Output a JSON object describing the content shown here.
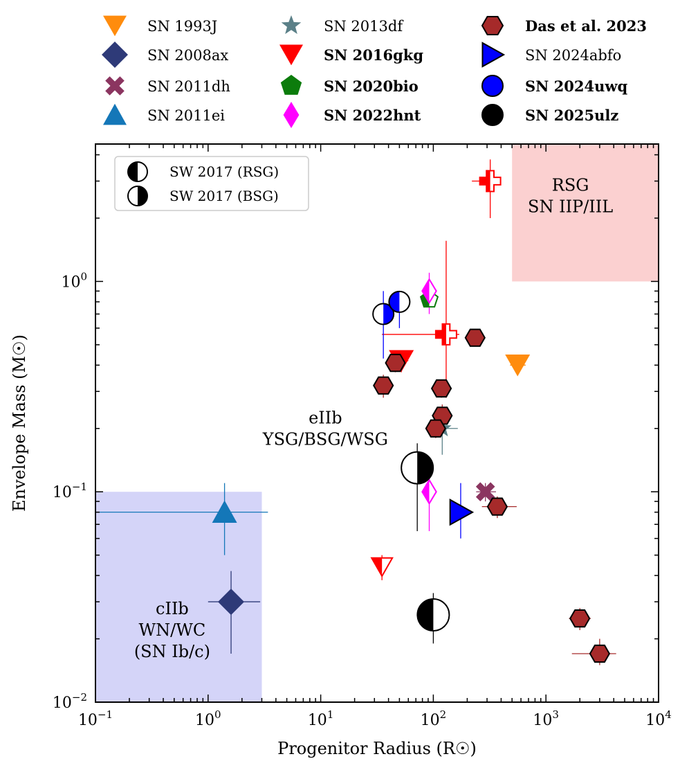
{
  "chart_data": {
    "type": "scatter",
    "xscale": "log",
    "yscale": "log",
    "xlim": [
      0.1,
      10000
    ],
    "ylim": [
      0.01,
      4.5
    ],
    "xlabel": "Progenitor Radius (R☉)",
    "ylabel": "Envelope Mass (M☉)",
    "x_tick_labels": [
      {
        "value": 0.1,
        "base": "10",
        "exp": "−1"
      },
      {
        "value": 1,
        "base": "10",
        "exp": "0"
      },
      {
        "value": 10,
        "base": "10",
        "exp": "1"
      },
      {
        "value": 100,
        "base": "10",
        "exp": "2"
      },
      {
        "value": 1000,
        "base": "10",
        "exp": "3"
      },
      {
        "value": 10000,
        "base": "10",
        "exp": "4"
      }
    ],
    "y_tick_labels": [
      {
        "value": 0.01,
        "base": "10",
        "exp": "−2"
      },
      {
        "value": 0.1,
        "base": "10",
        "exp": "−1"
      },
      {
        "value": 1,
        "base": "10",
        "exp": "0"
      }
    ],
    "regions": [
      {
        "name": "rsg-region",
        "x": [
          500,
          10000
        ],
        "y": [
          1.0,
          4.5
        ],
        "color": "#fbd0d0",
        "label_lines": [
          "RSG",
          "SN IIP/IIL"
        ],
        "label_x": 1650,
        "label_y": 2.55
      },
      {
        "name": "cIIb-region",
        "x": [
          0.1,
          3.0
        ],
        "y": [
          0.01,
          0.1
        ],
        "color": "#d4d4f8",
        "label_lines": [
          "cIIb",
          "WN/WC",
          "(SN Ib/c)"
        ],
        "label_x": 0.48,
        "label_y": 0.022
      },
      {
        "name": "eIIb-label",
        "color": "none",
        "label_lines": [
          "eIIb",
          "YSG/BSG/WSG"
        ],
        "label_x": 11,
        "label_y": 0.2
      }
    ],
    "legend": [
      {
        "name": "SN 1993J",
        "marker": "tri-down",
        "color": "#ff8c0d",
        "bold": false
      },
      {
        "name": "SN 2008ax",
        "marker": "diamond",
        "color": "#2e3a78",
        "bold": false
      },
      {
        "name": "SN 2011dh",
        "marker": "x",
        "color": "#8b3560",
        "bold": false
      },
      {
        "name": "SN 2011ei",
        "marker": "tri-up",
        "color": "#1477b8",
        "bold": false
      },
      {
        "name": "SN 2013df",
        "marker": "star",
        "color": "#5b8088",
        "bold": false
      },
      {
        "name": "SN 2016gkg",
        "marker": "tri-down",
        "color": "#ff0000",
        "bold": true
      },
      {
        "name": "SN 2020bio",
        "marker": "pentagon",
        "color": "#0c7c0c",
        "bold": true
      },
      {
        "name": "SN 2022hnt",
        "marker": "thin-diamond",
        "color": "#ff00ff",
        "bold": true
      },
      {
        "name": "Das et al. 2023",
        "marker": "hexagon",
        "color": "#a62a2a",
        "bold": true
      },
      {
        "name": "SN 2024abfo",
        "marker": "tri-right",
        "color": "#0000ff",
        "bold": false
      },
      {
        "name": "SN 2024uwq",
        "marker": "circle",
        "color": "#0000ff",
        "bold": true
      },
      {
        "name": "SN 2025ulz",
        "marker": "circle",
        "color": "#000000",
        "bold": true
      }
    ],
    "inset_legend": [
      {
        "label": "SW 2017 (RSG)",
        "style": "left-filled"
      },
      {
        "label": "SW 2017 (BSG)",
        "style": "right-filled"
      }
    ],
    "points": [
      {
        "series": "SN 1993J",
        "x": 560,
        "y": 0.4,
        "marker": "tri-down",
        "fill": "#ff8c0d",
        "xerr": [
          80,
          100
        ],
        "yerr": [
          0.03,
          0.03
        ],
        "size": 18
      },
      {
        "series": "SN 2008ax",
        "x": 1.6,
        "y": 0.03,
        "marker": "diamond",
        "fill": "#2e3a78",
        "xerr": [
          0.6,
          1.3
        ],
        "yerr": [
          0.013,
          0.012
        ],
        "size": 19
      },
      {
        "series": "SN 2011dh",
        "x": 290,
        "y": 0.1,
        "marker": "x",
        "fill": "#8b3560",
        "xerr": [
          50,
          70
        ],
        "yerr": [
          0.01,
          0.01
        ],
        "size": 15
      },
      {
        "series": "SN 2011ei",
        "x": 1.4,
        "y": 0.08,
        "marker": "tri-up",
        "fill": "#1477b8",
        "xerr": [
          1.3,
          2.0
        ],
        "yerr": [
          0.03,
          0.03
        ],
        "size": 18
      },
      {
        "series": "SN 2013df",
        "x": 120,
        "y": 0.2,
        "marker": "star",
        "fill": "#5b8088",
        "xerr": [
          30,
          45
        ],
        "yerr": [
          0.05,
          0.05
        ],
        "size": 14
      },
      {
        "series": "SN 2016gkg",
        "x": 52,
        "y": 0.42,
        "marker": "tri-down",
        "fill": "#ff0000",
        "xerr": [
          8,
          8
        ],
        "yerr": [
          0.05,
          0.05
        ],
        "size": 18
      },
      {
        "series": "SN 2016gkg",
        "x": 35,
        "y": 0.044,
        "marker": "tri-down",
        "fill": "#ff0000",
        "hollow_half": "right",
        "xerr": [
          0,
          0
        ],
        "yerr": [
          0.006,
          0.006
        ],
        "size": 15
      },
      {
        "series": "SN 2016gkg",
        "x": 320,
        "y": 3.0,
        "marker": "plus",
        "fill": "#ff0000",
        "hollow_half": "right",
        "xerr": [
          100,
          80
        ],
        "yerr": [
          1.0,
          0.8
        ],
        "size": 15
      },
      {
        "series": "SN 2016gkg",
        "x": 130,
        "y": 0.56,
        "marker": "plus",
        "fill": "#ff0000",
        "hollow_half": "right",
        "xerr": [
          95,
          40
        ],
        "yerr": [
          0.28,
          1.0
        ],
        "size": 15
      },
      {
        "series": "SN 2020bio",
        "x": 92,
        "y": 0.82,
        "marker": "pentagon",
        "fill": "#0c7c0c",
        "hollow_half": "right",
        "xerr": [
          0,
          0
        ],
        "yerr": [
          0.0,
          0.0
        ],
        "size": 13
      },
      {
        "series": "SN 2022hnt",
        "x": 92,
        "y": 0.9,
        "marker": "thin-diamond",
        "fill": "#ff00ff",
        "hollow_half": "right",
        "xerr": [
          0,
          0
        ],
        "yerr": [
          0.2,
          0.2
        ],
        "size": 17
      },
      {
        "series": "SN 2022hnt",
        "x": 92,
        "y": 0.1,
        "marker": "thin-diamond",
        "fill": "#ff00ff",
        "hollow_half": "right",
        "xerr": [
          0,
          0
        ],
        "yerr": [
          0.035,
          0.03
        ],
        "size": 17
      },
      {
        "series": "Das et al. 2023",
        "x": 36,
        "y": 0.32,
        "marker": "hexagon",
        "fill": "#a62a2a",
        "xerr": [
          6,
          6
        ],
        "yerr": [
          0.04,
          0.04
        ],
        "size": 14
      },
      {
        "series": "Das et al. 2023",
        "x": 46,
        "y": 0.41,
        "marker": "hexagon",
        "fill": "#a62a2a",
        "xerr": [
          6,
          6
        ],
        "yerr": [
          0.04,
          0.04
        ],
        "size": 14
      },
      {
        "series": "Das et al. 2023",
        "x": 118,
        "y": 0.31,
        "marker": "hexagon",
        "fill": "#a62a2a",
        "xerr": [
          10,
          10
        ],
        "yerr": [
          0.03,
          0.03
        ],
        "size": 14
      },
      {
        "series": "Das et al. 2023",
        "x": 120,
        "y": 0.23,
        "marker": "hexagon",
        "fill": "#a62a2a",
        "xerr": [
          10,
          10
        ],
        "yerr": [
          0.03,
          0.03
        ],
        "size": 14
      },
      {
        "series": "Das et al. 2023",
        "x": 105,
        "y": 0.2,
        "marker": "hexagon",
        "fill": "#a62a2a",
        "xerr": [
          10,
          10
        ],
        "yerr": [
          0.02,
          0.02
        ],
        "size": 14
      },
      {
        "series": "Das et al. 2023",
        "x": 235,
        "y": 0.54,
        "marker": "hexagon",
        "fill": "#a62a2a",
        "xerr": [
          20,
          20
        ],
        "yerr": [
          0.04,
          0.04
        ],
        "size": 14
      },
      {
        "series": "Das et al. 2023",
        "x": 370,
        "y": 0.085,
        "marker": "hexagon",
        "fill": "#a62a2a",
        "xerr": [
          100,
          180
        ],
        "yerr": [
          0.01,
          0.01
        ],
        "size": 14
      },
      {
        "series": "Das et al. 2023",
        "x": 2000,
        "y": 0.025,
        "marker": "hexagon",
        "fill": "#a62a2a",
        "xerr": [
          400,
          500
        ],
        "yerr": [
          0.003,
          0.003
        ],
        "size": 14
      },
      {
        "series": "Das et al. 2023",
        "x": 3000,
        "y": 0.017,
        "marker": "hexagon",
        "fill": "#a62a2a",
        "xerr": [
          1300,
          1200
        ],
        "yerr": [
          0.002,
          0.003
        ],
        "size": 14
      },
      {
        "series": "SN 2024abfo",
        "x": 175,
        "y": 0.08,
        "marker": "tri-right",
        "fill": "#0000ff",
        "xerr": [
          0,
          0
        ],
        "yerr": [
          0.02,
          0.03
        ],
        "size": 18
      },
      {
        "series": "SN 2024uwq",
        "x": 36,
        "y": 0.7,
        "marker": "circle",
        "fill": "#0000ff",
        "half": "right",
        "xerr": [
          0,
          0
        ],
        "yerr": [
          0.27,
          0.2
        ],
        "size": 15
      },
      {
        "series": "SN 2024uwq",
        "x": 50,
        "y": 0.8,
        "marker": "circle",
        "fill": "#0000ff",
        "half": "left",
        "xerr": [
          0,
          0
        ],
        "yerr": [
          0.2,
          0.1
        ],
        "size": 15
      },
      {
        "series": "SN 2025ulz",
        "x": 72,
        "y": 0.13,
        "marker": "circle",
        "fill": "#000000",
        "half": "right",
        "xerr": [
          0,
          0
        ],
        "yerr": [
          0.065,
          0.04
        ],
        "size": 23
      },
      {
        "series": "SN 2025ulz",
        "x": 100,
        "y": 0.026,
        "marker": "circle",
        "fill": "#000000",
        "half": "left",
        "xerr": [
          0,
          0
        ],
        "yerr": [
          0.007,
          0.007
        ],
        "size": 23
      }
    ]
  }
}
